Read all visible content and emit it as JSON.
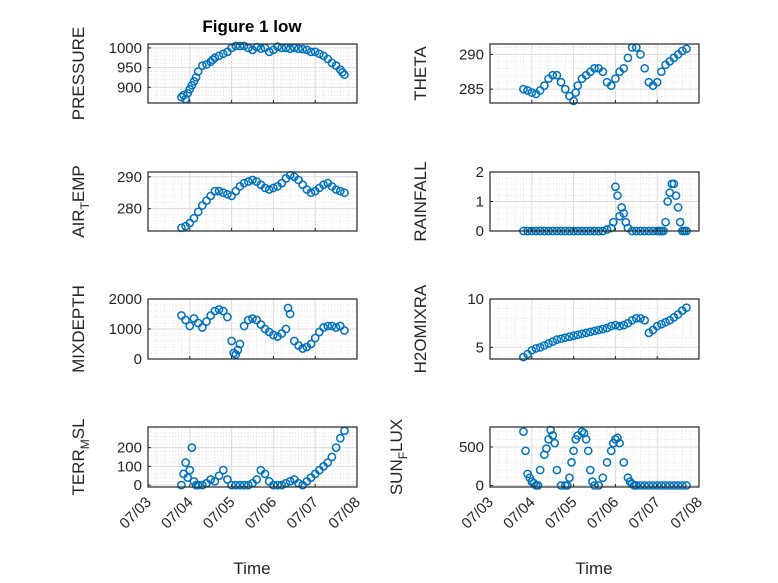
{
  "figure": {
    "title": "Figure 1 low",
    "shared_xlabel": "Time",
    "xtick_labels": [
      "07/03",
      "07/04",
      "07/05",
      "07/06",
      "07/07",
      "07/08"
    ]
  },
  "chart_data": [
    {
      "type": "scatter",
      "ylabel": "PRESSURE",
      "title": "Figure 1 low",
      "xlim": [
        "07/03",
        "07/08"
      ],
      "ylim": [
        860,
        1010
      ],
      "yticks": [
        900,
        950,
        1000
      ],
      "grid": true,
      "marker_color": "#0072bd",
      "series": [
        {
          "x": [
            3.8,
            3.85,
            3.9,
            3.95,
            4.0,
            4.05,
            4.1,
            4.15,
            4.2,
            4.3,
            4.4,
            4.5,
            4.55,
            4.6,
            4.7,
            4.8,
            4.9,
            5.0,
            5.1,
            5.2,
            5.3,
            5.4,
            5.5,
            5.6,
            5.7,
            5.8,
            5.9,
            6.0,
            6.1,
            6.2,
            6.3,
            6.4,
            6.5,
            6.6,
            6.7,
            6.8,
            6.9,
            7.0,
            7.1,
            7.2,
            7.3,
            7.4,
            7.5,
            7.6,
            7.65,
            7.7
          ],
          "y": [
            875,
            880,
            870,
            885,
            895,
            905,
            915,
            925,
            940,
            955,
            958,
            965,
            970,
            975,
            980,
            985,
            990,
            1000,
            1005,
            1005,
            1005,
            1000,
            995,
            1002,
            998,
            1000,
            990,
            995,
            1003,
            1000,
            1000,
            998,
            1000,
            998,
            997,
            995,
            990,
            990,
            985,
            980,
            972,
            962,
            955,
            945,
            938,
            932
          ]
        }
      ]
    },
    {
      "type": "scatter",
      "ylabel": "THETA",
      "xlim": [
        "07/03",
        "07/08"
      ],
      "ylim": [
        283,
        291.5
      ],
      "yticks": [
        285,
        290
      ],
      "grid": true,
      "marker_color": "#0072bd",
      "series": [
        {
          "x": [
            3.8,
            3.9,
            4.0,
            4.1,
            4.2,
            4.3,
            4.4,
            4.5,
            4.6,
            4.7,
            4.8,
            4.9,
            5.0,
            5.05,
            5.1,
            5.2,
            5.3,
            5.4,
            5.5,
            5.6,
            5.7,
            5.8,
            5.9,
            6.0,
            6.1,
            6.2,
            6.3,
            6.4,
            6.5,
            6.6,
            6.7,
            6.8,
            6.9,
            7.0,
            7.1,
            7.2,
            7.3,
            7.4,
            7.5,
            7.6,
            7.7
          ],
          "y": [
            285,
            284.8,
            284.5,
            284.3,
            284.8,
            285.5,
            286.5,
            287,
            287,
            286,
            285,
            284,
            283.3,
            284.5,
            285.5,
            286.5,
            287,
            287.5,
            288,
            288,
            287.5,
            286,
            285.5,
            286.5,
            287.5,
            288,
            289.5,
            291,
            291,
            290,
            288,
            286,
            285.5,
            286,
            287.5,
            288.5,
            289,
            289.5,
            290,
            290.5,
            290.8
          ]
        }
      ]
    },
    {
      "type": "scatter",
      "ylabel": "AIR_TEMP",
      "xlim": [
        "07/03",
        "07/08"
      ],
      "ylim": [
        273,
        291.5
      ],
      "yticks": [
        280,
        290
      ],
      "grid": true,
      "marker_color": "#0072bd",
      "series": [
        {
          "x": [
            3.8,
            3.9,
            4.0,
            4.1,
            4.2,
            4.3,
            4.4,
            4.5,
            4.6,
            4.7,
            4.8,
            4.9,
            5.0,
            5.1,
            5.2,
            5.3,
            5.4,
            5.5,
            5.6,
            5.7,
            5.8,
            5.9,
            6.0,
            6.1,
            6.2,
            6.3,
            6.4,
            6.5,
            6.6,
            6.7,
            6.8,
            6.9,
            7.0,
            7.1,
            7.2,
            7.3,
            7.4,
            7.5,
            7.6,
            7.7
          ],
          "y": [
            274,
            274.5,
            275.5,
            277,
            279,
            281,
            282.5,
            284,
            285.5,
            285.5,
            285,
            284.5,
            284,
            285.5,
            287,
            288,
            288.5,
            289,
            288.5,
            287.5,
            286.5,
            286,
            286.5,
            287,
            288,
            289.5,
            290.5,
            290,
            289,
            287.5,
            286,
            285,
            285.5,
            286.5,
            287.5,
            288,
            287,
            286,
            285.5,
            285
          ]
        }
      ]
    },
    {
      "type": "scatter",
      "ylabel": "RAINFALL",
      "xlim": [
        "07/03",
        "07/08"
      ],
      "ylim": [
        0,
        2
      ],
      "yticks": [
        0,
        1,
        2
      ],
      "grid": true,
      "marker_color": "#0072bd",
      "series": [
        {
          "x": [
            3.8,
            3.9,
            4.0,
            4.1,
            4.2,
            4.3,
            4.4,
            4.5,
            4.6,
            4.7,
            4.8,
            4.9,
            5.0,
            5.1,
            5.2,
            5.3,
            5.4,
            5.5,
            5.6,
            5.7,
            5.8,
            5.9,
            5.95,
            6.0,
            6.05,
            6.1,
            6.15,
            6.2,
            6.25,
            6.3,
            6.4,
            6.5,
            6.6,
            6.7,
            6.8,
            6.9,
            7.0,
            7.05,
            7.1,
            7.15,
            7.2,
            7.25,
            7.3,
            7.35,
            7.4,
            7.45,
            7.5,
            7.55,
            7.6,
            7.65,
            7.7
          ],
          "y": [
            0,
            0,
            0,
            0,
            0,
            0,
            0,
            0,
            0,
            0,
            0,
            0,
            0,
            0,
            0,
            0,
            0,
            0,
            0,
            0,
            0.05,
            0.1,
            0.3,
            1.5,
            1.2,
            0.5,
            0.8,
            0.6,
            0.3,
            0.1,
            0,
            0,
            0,
            0,
            0,
            0,
            0,
            0,
            0,
            0,
            0.3,
            1.0,
            1.3,
            1.6,
            1.6,
            1.2,
            0.8,
            0.3,
            0,
            0,
            0
          ]
        }
      ]
    },
    {
      "type": "scatter",
      "ylabel": "MIXDEPTH",
      "xlim": [
        "07/03",
        "07/08"
      ],
      "ylim": [
        0,
        2000
      ],
      "yticks": [
        0,
        1000,
        2000
      ],
      "grid": true,
      "marker_color": "#0072bd",
      "series": [
        {
          "x": [
            3.8,
            3.9,
            4.0,
            4.1,
            4.2,
            4.3,
            4.4,
            4.5,
            4.6,
            4.7,
            4.8,
            4.9,
            5.0,
            5.05,
            5.1,
            5.15,
            5.2,
            5.3,
            5.4,
            5.5,
            5.6,
            5.7,
            5.8,
            5.9,
            6.0,
            6.1,
            6.2,
            6.3,
            6.35,
            6.4,
            6.5,
            6.6,
            6.7,
            6.8,
            6.9,
            7.0,
            7.1,
            7.2,
            7.3,
            7.4,
            7.5,
            7.6,
            7.7
          ],
          "y": [
            1450,
            1300,
            1100,
            1350,
            1200,
            1050,
            1250,
            1450,
            1600,
            1650,
            1600,
            1400,
            600,
            200,
            150,
            300,
            500,
            1100,
            1300,
            1350,
            1300,
            1150,
            1000,
            900,
            800,
            750,
            850,
            1000,
            1700,
            1500,
            600,
            450,
            350,
            400,
            500,
            700,
            900,
            1050,
            1100,
            1100,
            1050,
            1100,
            950
          ]
        }
      ]
    },
    {
      "type": "scatter",
      "ylabel": "H2OMIXRA",
      "xlim": [
        "07/03",
        "07/08"
      ],
      "ylim": [
        3.8,
        10
      ],
      "yticks": [
        5,
        10
      ],
      "grid": true,
      "marker_color": "#0072bd",
      "series": [
        {
          "x": [
            3.8,
            3.9,
            4.0,
            4.1,
            4.2,
            4.3,
            4.4,
            4.5,
            4.6,
            4.7,
            4.8,
            4.9,
            5.0,
            5.1,
            5.2,
            5.3,
            5.4,
            5.5,
            5.6,
            5.7,
            5.8,
            5.9,
            6.0,
            6.1,
            6.2,
            6.3,
            6.4,
            6.5,
            6.6,
            6.7,
            6.8,
            6.9,
            7.0,
            7.1,
            7.2,
            7.3,
            7.4,
            7.5,
            7.6,
            7.7
          ],
          "y": [
            4.0,
            4.3,
            4.7,
            4.9,
            5.0,
            5.2,
            5.4,
            5.6,
            5.8,
            5.9,
            6.0,
            6.1,
            6.2,
            6.3,
            6.4,
            6.5,
            6.6,
            6.7,
            6.8,
            6.9,
            7.0,
            7.2,
            7.3,
            7.2,
            7.3,
            7.5,
            7.8,
            8.0,
            8.0,
            7.8,
            6.5,
            6.8,
            7.2,
            7.4,
            7.6,
            7.8,
            8.1,
            8.4,
            8.8,
            9.1
          ]
        }
      ]
    },
    {
      "type": "scatter",
      "ylabel": "TERR_MSL",
      "xlim": [
        "07/03",
        "07/08"
      ],
      "ylim": [
        -10,
        310
      ],
      "yticks": [
        0,
        100,
        200
      ],
      "grid": true,
      "marker_color": "#0072bd",
      "series": [
        {
          "x": [
            3.8,
            3.85,
            3.9,
            3.95,
            4.0,
            4.05,
            4.1,
            4.15,
            4.2,
            4.3,
            4.4,
            4.5,
            4.6,
            4.7,
            4.8,
            4.9,
            5.0,
            5.1,
            5.2,
            5.3,
            5.4,
            5.5,
            5.6,
            5.7,
            5.8,
            5.9,
            6.0,
            6.1,
            6.2,
            6.3,
            6.4,
            6.5,
            6.6,
            6.7,
            6.8,
            6.9,
            7.0,
            7.1,
            7.2,
            7.3,
            7.4,
            7.5,
            7.6,
            7.7
          ],
          "y": [
            0,
            60,
            120,
            40,
            80,
            200,
            20,
            0,
            0,
            0,
            10,
            30,
            20,
            50,
            80,
            30,
            0,
            0,
            0,
            0,
            0,
            10,
            30,
            80,
            60,
            20,
            0,
            0,
            0,
            10,
            20,
            30,
            10,
            0,
            20,
            40,
            60,
            80,
            100,
            120,
            150,
            200,
            250,
            290
          ]
        }
      ]
    },
    {
      "type": "scatter",
      "ylabel": "SUN_FLUX",
      "xlim": [
        "07/03",
        "07/08"
      ],
      "ylim": [
        -20,
        760
      ],
      "yticks": [
        0,
        500
      ],
      "grid": true,
      "marker_color": "#0072bd",
      "series": [
        {
          "x": [
            3.8,
            3.85,
            3.9,
            3.95,
            4.0,
            4.05,
            4.1,
            4.15,
            4.2,
            4.3,
            4.35,
            4.4,
            4.45,
            4.5,
            4.55,
            4.6,
            4.7,
            4.8,
            4.85,
            4.9,
            4.95,
            5.0,
            5.05,
            5.1,
            5.2,
            5.25,
            5.3,
            5.35,
            5.4,
            5.45,
            5.5,
            5.6,
            5.7,
            5.8,
            5.9,
            5.95,
            6.0,
            6.05,
            6.1,
            6.2,
            6.3,
            6.35,
            6.4,
            6.45,
            6.5,
            6.6,
            6.7,
            6.8,
            6.9,
            7.0,
            7.1,
            7.2,
            7.3,
            7.4,
            7.5,
            7.6,
            7.7
          ],
          "y": [
            700,
            450,
            150,
            100,
            50,
            30,
            0,
            0,
            200,
            400,
            480,
            600,
            720,
            650,
            550,
            200,
            0,
            0,
            0,
            100,
            300,
            450,
            600,
            650,
            700,
            680,
            600,
            450,
            200,
            50,
            0,
            0,
            100,
            300,
            450,
            550,
            600,
            620,
            550,
            300,
            100,
            50,
            20,
            0,
            0,
            0,
            0,
            0,
            0,
            0,
            0,
            0,
            0,
            0,
            0,
            0,
            0
          ]
        }
      ]
    }
  ]
}
